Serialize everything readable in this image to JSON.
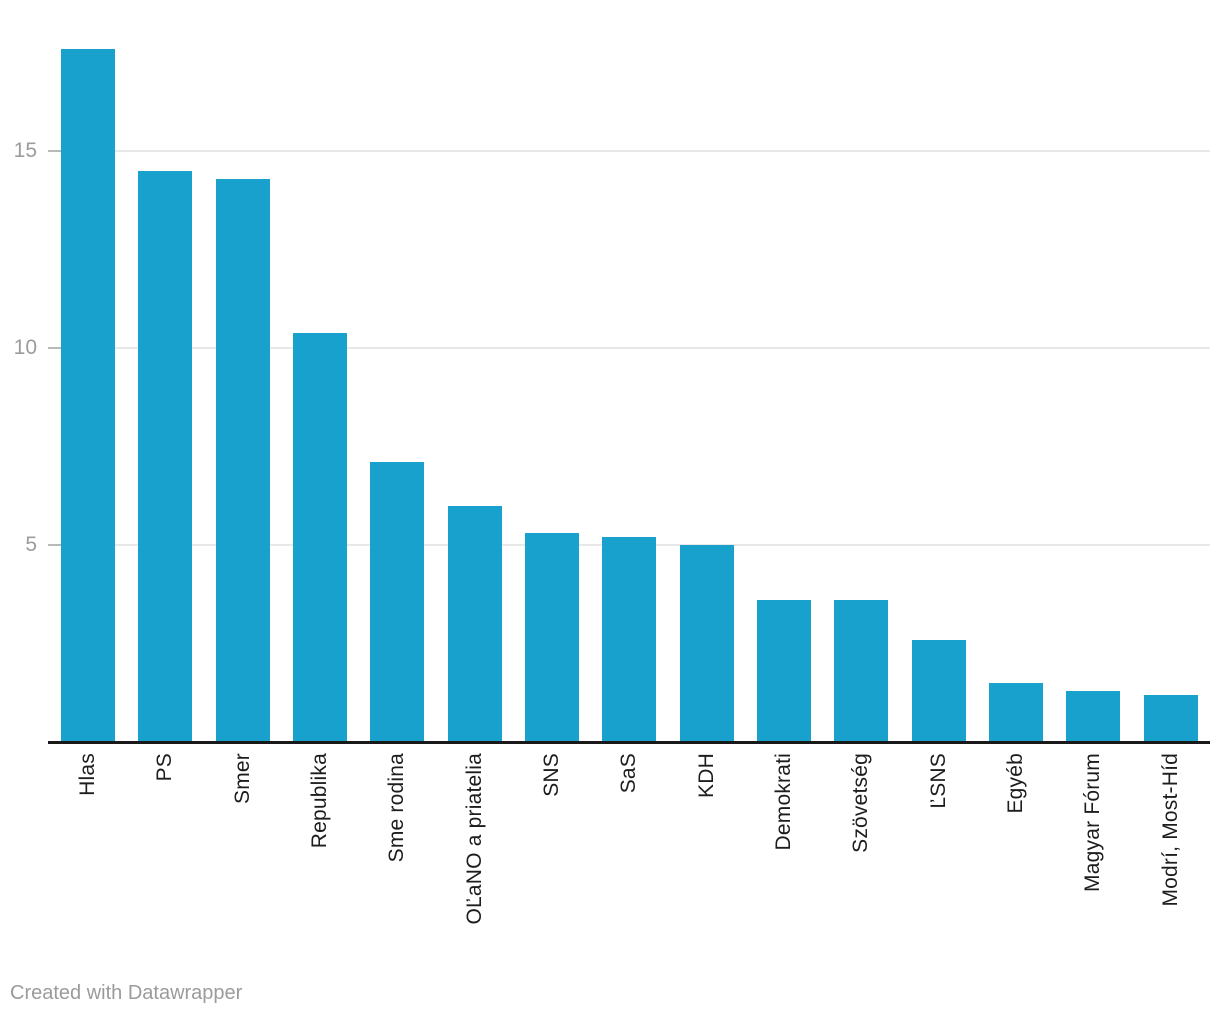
{
  "chart_data": {
    "type": "bar",
    "categories": [
      "Hlas",
      "PS",
      "Smer",
      "Republika",
      "Sme rodina",
      "OĽaNO a priatelia",
      "SNS",
      "SaS",
      "KDH",
      "Demokrati",
      "Szövetség",
      "ĽSNS",
      "Egyéb",
      "Magyar Fórum",
      "Modrí, Most-Híd"
    ],
    "values": [
      17.6,
      14.5,
      14.3,
      10.4,
      7.1,
      6.0,
      5.3,
      5.2,
      5.0,
      3.6,
      3.6,
      2.6,
      1.5,
      1.3,
      1.2
    ],
    "title": "",
    "xlabel": "",
    "ylabel": "",
    "yticks": [
      5,
      10,
      15
    ],
    "ylim": [
      0,
      18.5
    ],
    "grid": true,
    "legend": "none",
    "bar_color": "#18a1cc"
  },
  "colors": {
    "bar": "#18a1cc",
    "gridline": "#e8e8e8",
    "tick": "#b9b9b9",
    "axis": "#191919",
    "tick_label": "#9c9c9c",
    "category_label": "#1d1d1d",
    "footer": "#9b9b9b",
    "background": "#ffffff"
  },
  "footer": {
    "credit": "Created with Datawrapper"
  }
}
